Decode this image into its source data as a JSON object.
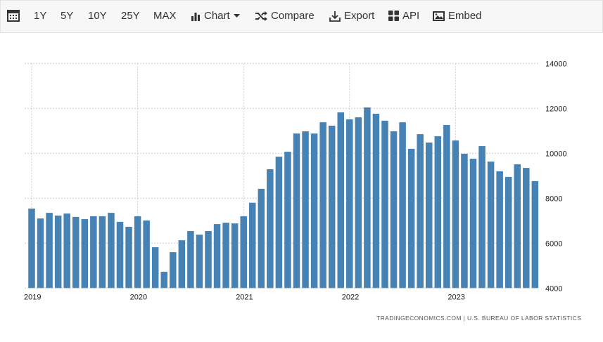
{
  "toolbar": {
    "calendar_icon": "calendar-icon",
    "ranges": [
      "1Y",
      "5Y",
      "10Y",
      "25Y",
      "MAX"
    ],
    "chart_label": "Chart",
    "compare_label": "Compare",
    "export_label": "Export",
    "api_label": "API",
    "embed_label": "Embed"
  },
  "source": "TRADINGECONOMICS.COM | U.S. BUREAU OF LABOR STATISTICS",
  "chart_data": {
    "type": "bar",
    "color": "#4682b4",
    "grid": true,
    "ylim": [
      4000,
      14000
    ],
    "yticks": [
      "4000",
      "6000",
      "8000",
      "10000",
      "12000",
      "14000"
    ],
    "xticks": [
      "2019",
      "2020",
      "2021",
      "2022",
      "2023"
    ],
    "start": "2019-01",
    "frequency": "monthly",
    "values": [
      7540,
      7100,
      7350,
      7230,
      7320,
      7170,
      7070,
      7200,
      7200,
      7350,
      6950,
      6730,
      7200,
      7010,
      5820,
      4730,
      5600,
      6130,
      6540,
      6380,
      6540,
      6850,
      6910,
      6880,
      7200,
      7800,
      8420,
      9290,
      9850,
      10070,
      10880,
      10980,
      10880,
      11380,
      11230,
      11820,
      11510,
      11600,
      12040,
      11760,
      11450,
      10980,
      11380,
      10200,
      10850,
      10480,
      10760,
      11260,
      10570,
      9980,
      9760,
      10320,
      9630,
      9200,
      8950,
      9510,
      9350,
      8760
    ]
  }
}
